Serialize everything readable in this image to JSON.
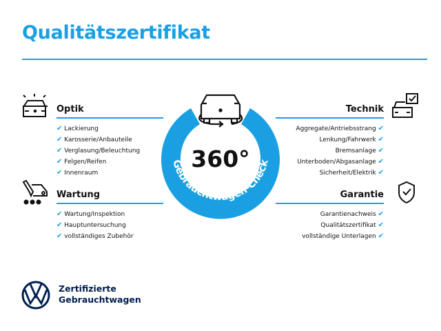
{
  "title": "Qualitätszertifikat",
  "colors": {
    "accent": "#1aa0e2",
    "brand": "#001e50"
  },
  "center": {
    "degrees": "360°",
    "arc_text": "Gebrauchtwagen-Check",
    "icon": "car-rotate-icon"
  },
  "sections": {
    "optik": {
      "heading": "Optik",
      "icon": "car-lights-icon",
      "items": [
        "Lackierung",
        "Karosserie/Anbauteile",
        "Verglasung/Beleuchtung",
        "Felgen/Reifen",
        "Innenraum"
      ]
    },
    "wartung": {
      "heading": "Wartung",
      "icon": "service-van-icon",
      "items": [
        "Wartung/Inspektion",
        "Hauptuntersuchung",
        "vollständiges Zubehör"
      ]
    },
    "technik": {
      "heading": "Technik",
      "icon": "car-checkbox-icon",
      "items": [
        "Aggregate/Antriebsstrang",
        "Lenkung/Fahrwerk",
        "Bremsanlage",
        "Unterboden/Abgasanlage",
        "Sicherheit/Elektrik"
      ]
    },
    "garantie": {
      "heading": "Garantie",
      "icon": "shield-check-icon",
      "items": [
        "Garantienachweis",
        "Qualitätszertifikat",
        "vollständige Unterlagen"
      ]
    }
  },
  "check_mark": "✔",
  "footer": {
    "line1": "Zertifizierte",
    "line2": "Gebrauchtwagen",
    "logo": "vw-logo"
  }
}
